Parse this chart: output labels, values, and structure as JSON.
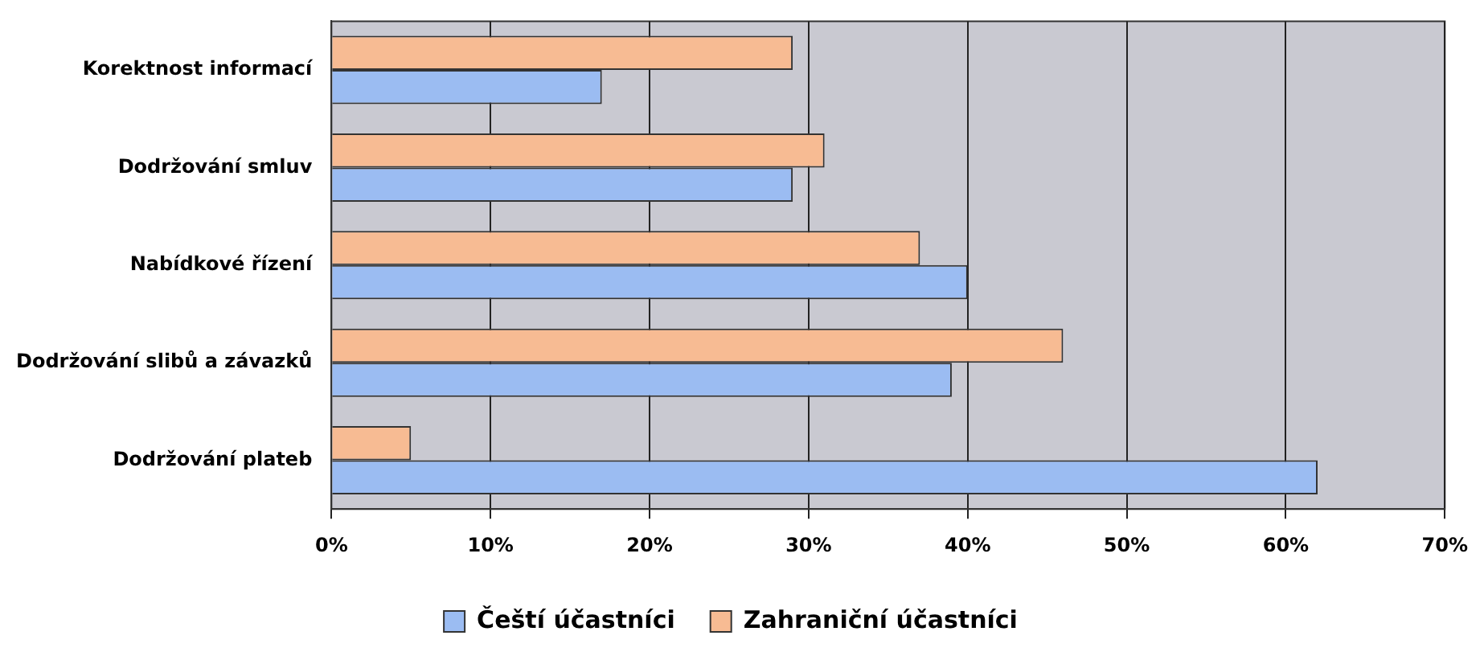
{
  "chart_data": {
    "type": "bar",
    "orientation": "horizontal",
    "categories": [
      "Korektnost informací",
      "Dodržování smluv",
      "Nabídkové řízení",
      "Dodržování slibů a závazků",
      "Dodržování plateb"
    ],
    "series": [
      {
        "name": "Čeští účastníci",
        "color": "#9bbcf2",
        "values": [
          17,
          29,
          40,
          39,
          62
        ]
      },
      {
        "name": "Zahraniční účastníci",
        "color": "#f7bb93",
        "values": [
          29,
          31,
          37,
          46,
          5
        ]
      }
    ],
    "xlim": [
      0,
      70
    ],
    "xticks": [
      {
        "value": 0,
        "label": "0%"
      },
      {
        "value": 10,
        "label": "10%"
      },
      {
        "value": 20,
        "label": "20%"
      },
      {
        "value": 30,
        "label": "30%"
      },
      {
        "value": 40,
        "label": "40%"
      },
      {
        "value": 50,
        "label": "50%"
      },
      {
        "value": 60,
        "label": "60%"
      },
      {
        "value": 70,
        "label": "70%"
      }
    ],
    "grid": "x",
    "legend": "bottom"
  }
}
